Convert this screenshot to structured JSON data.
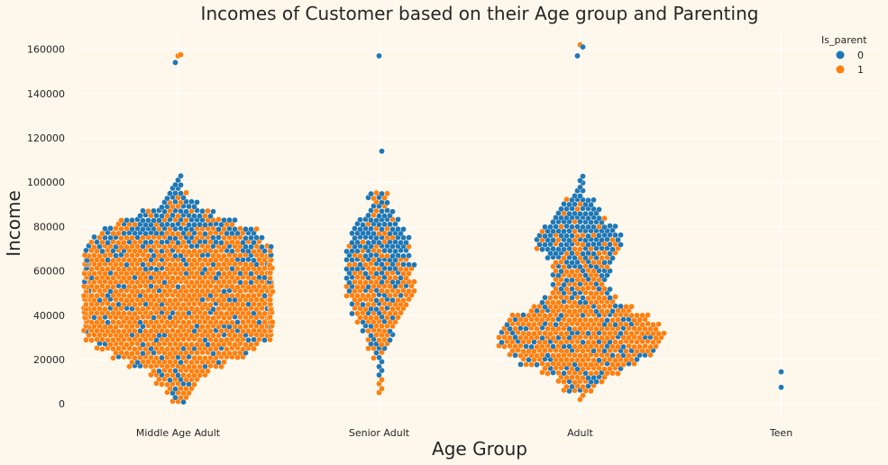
{
  "chart_data": {
    "type": "scatter",
    "subtype": "swarm",
    "title": "Incomes of Customer based on their Age group and Parenting",
    "xlabel": "Age Group",
    "ylabel": "Income",
    "categories": [
      "Middle Age Adult",
      "Senior Adult",
      "Adult",
      "Teen"
    ],
    "y_ticks": [
      "0",
      "20000",
      "40000",
      "60000",
      "80000",
      "100000",
      "120000",
      "140000",
      "160000"
    ],
    "ylim": [
      -6000,
      170000
    ],
    "grid": true,
    "legend": {
      "title": "Is_parent",
      "placement": "top-right",
      "entries": [
        {
          "label": "0",
          "color": "#1f77b4"
        },
        {
          "label": "1",
          "color": "#ff7f0e"
        }
      ]
    },
    "colors": {
      "background": "#fef8ec",
      "is_parent_0": "#1f77b4",
      "is_parent_1": "#ff7f0e"
    },
    "series": [
      {
        "category": "Middle Age Adult",
        "estimated_counts": {
          "0": 330,
          "1": 1020
        },
        "outliers": [
          {
            "y": 157000,
            "hue": 1
          },
          {
            "y": 157500,
            "hue": 1
          },
          {
            "y": 154000,
            "hue": 0
          }
        ],
        "density_profile": [
          {
            "y": 2000,
            "0": 2,
            "1": 4
          },
          {
            "y": 6000,
            "0": 2,
            "1": 8
          },
          {
            "y": 10000,
            "0": 3,
            "1": 12
          },
          {
            "y": 14000,
            "0": 4,
            "1": 18
          },
          {
            "y": 18000,
            "0": 6,
            "1": 30
          },
          {
            "y": 22000,
            "0": 8,
            "1": 42
          },
          {
            "y": 26000,
            "0": 8,
            "1": 52
          },
          {
            "y": 30000,
            "0": 9,
            "1": 60
          },
          {
            "y": 34000,
            "0": 9,
            "1": 64
          },
          {
            "y": 38000,
            "0": 9,
            "1": 66
          },
          {
            "y": 42000,
            "0": 9,
            "1": 66
          },
          {
            "y": 46000,
            "0": 9,
            "1": 66
          },
          {
            "y": 50000,
            "0": 10,
            "1": 66
          },
          {
            "y": 54000,
            "0": 10,
            "1": 66
          },
          {
            "y": 58000,
            "0": 12,
            "1": 64
          },
          {
            "y": 62000,
            "0": 14,
            "1": 62
          },
          {
            "y": 66000,
            "0": 18,
            "1": 56
          },
          {
            "y": 70000,
            "0": 24,
            "1": 46
          },
          {
            "y": 74000,
            "0": 30,
            "1": 34
          },
          {
            "y": 78000,
            "0": 34,
            "1": 24
          },
          {
            "y": 82000,
            "0": 30,
            "1": 14
          },
          {
            "y": 86000,
            "0": 20,
            "1": 8
          },
          {
            "y": 90000,
            "0": 10,
            "1": 4
          },
          {
            "y": 94000,
            "0": 5,
            "1": 2
          },
          {
            "y": 98000,
            "0": 3,
            "1": 0
          },
          {
            "y": 102000,
            "0": 2,
            "1": 0
          }
        ]
      },
      {
        "category": "Senior Adult",
        "estimated_counts": {
          "0": 160,
          "1": 150
        },
        "outliers": [
          {
            "y": 157000,
            "hue": 0
          },
          {
            "y": 114000,
            "hue": 0
          }
        ],
        "density_profile": [
          {
            "y": 6000,
            "0": 0,
            "1": 2
          },
          {
            "y": 10000,
            "0": 0,
            "1": 1
          },
          {
            "y": 14000,
            "0": 2,
            "1": 0
          },
          {
            "y": 18000,
            "0": 2,
            "1": 0
          },
          {
            "y": 22000,
            "0": 2,
            "1": 2
          },
          {
            "y": 26000,
            "0": 3,
            "1": 4
          },
          {
            "y": 30000,
            "0": 3,
            "1": 6
          },
          {
            "y": 34000,
            "0": 4,
            "1": 8
          },
          {
            "y": 38000,
            "0": 4,
            "1": 12
          },
          {
            "y": 42000,
            "0": 5,
            "1": 14
          },
          {
            "y": 46000,
            "0": 6,
            "1": 16
          },
          {
            "y": 50000,
            "0": 6,
            "1": 20
          },
          {
            "y": 54000,
            "0": 8,
            "1": 18
          },
          {
            "y": 58000,
            "0": 10,
            "1": 14
          },
          {
            "y": 62000,
            "0": 14,
            "1": 12
          },
          {
            "y": 66000,
            "0": 16,
            "1": 8
          },
          {
            "y": 70000,
            "0": 18,
            "1": 6
          },
          {
            "y": 74000,
            "0": 18,
            "1": 4
          },
          {
            "y": 78000,
            "0": 16,
            "1": 3
          },
          {
            "y": 82000,
            "0": 14,
            "1": 2
          },
          {
            "y": 86000,
            "0": 8,
            "1": 2
          },
          {
            "y": 90000,
            "0": 4,
            "1": 2
          },
          {
            "y": 94000,
            "0": 3,
            "1": 3
          }
        ]
      },
      {
        "category": "Adult",
        "estimated_counts": {
          "0": 350,
          "1": 600
        },
        "outliers": [
          {
            "y": 162000,
            "hue": 1
          },
          {
            "y": 161000,
            "hue": 0
          },
          {
            "y": 157000,
            "hue": 0
          }
        ],
        "density_profile": [
          {
            "y": 3000,
            "0": 0,
            "1": 2
          },
          {
            "y": 7000,
            "0": 4,
            "1": 8
          },
          {
            "y": 11000,
            "0": 5,
            "1": 12
          },
          {
            "y": 15000,
            "0": 8,
            "1": 22
          },
          {
            "y": 19000,
            "0": 10,
            "1": 34
          },
          {
            "y": 23000,
            "0": 12,
            "1": 42
          },
          {
            "y": 27000,
            "0": 14,
            "1": 46
          },
          {
            "y": 31000,
            "0": 14,
            "1": 48
          },
          {
            "y": 35000,
            "0": 12,
            "1": 46
          },
          {
            "y": 39000,
            "0": 10,
            "1": 42
          },
          {
            "y": 43000,
            "0": 8,
            "1": 30
          },
          {
            "y": 47000,
            "0": 8,
            "1": 20
          },
          {
            "y": 51000,
            "0": 8,
            "1": 14
          },
          {
            "y": 55000,
            "0": 8,
            "1": 12
          },
          {
            "y": 59000,
            "0": 10,
            "1": 12
          },
          {
            "y": 63000,
            "0": 12,
            "1": 10
          },
          {
            "y": 67000,
            "0": 16,
            "1": 10
          },
          {
            "y": 71000,
            "0": 22,
            "1": 10
          },
          {
            "y": 75000,
            "0": 24,
            "1": 8
          },
          {
            "y": 79000,
            "0": 24,
            "1": 4
          },
          {
            "y": 83000,
            "0": 18,
            "1": 2
          },
          {
            "y": 87000,
            "0": 14,
            "1": 2
          },
          {
            "y": 91000,
            "0": 10,
            "1": 1
          },
          {
            "y": 95000,
            "0": 4,
            "1": 0
          },
          {
            "y": 99000,
            "0": 2,
            "1": 0
          },
          {
            "y": 102000,
            "0": 2,
            "1": 0
          }
        ]
      },
      {
        "category": "Teen",
        "estimated_counts": {
          "0": 2,
          "1": 0
        },
        "outliers": [],
        "points": [
          {
            "y": 14500,
            "hue": 0
          },
          {
            "y": 7500,
            "hue": 0
          }
        ]
      }
    ]
  }
}
